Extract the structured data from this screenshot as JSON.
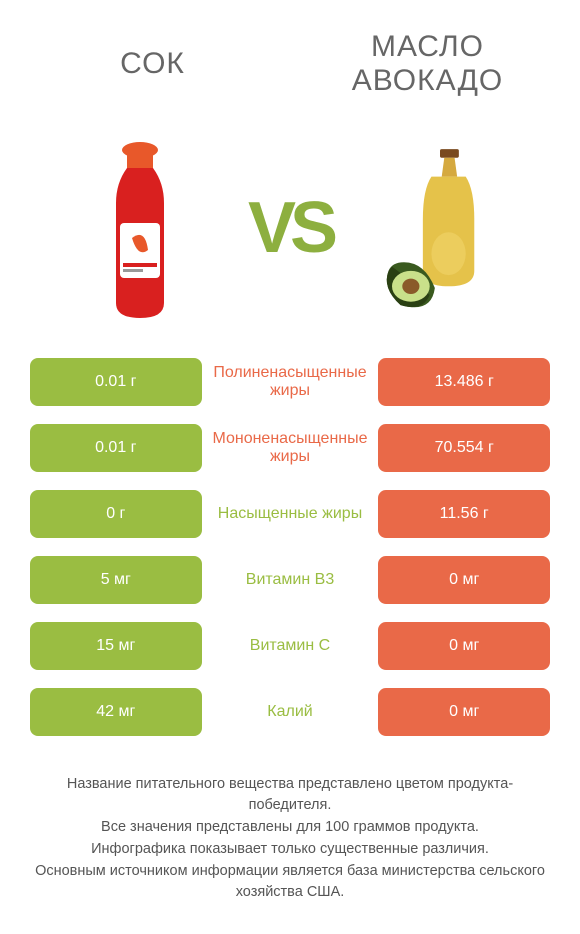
{
  "colors": {
    "left": "#9abd42",
    "right": "#e96948",
    "vs": "#8daf3f",
    "title": "#666666",
    "foot": "#555555",
    "bg": "#ffffff"
  },
  "left_title": "СОК",
  "right_title": "МАСЛО АВОКАДО",
  "vs": "VS",
  "rows": [
    {
      "left": "0.01 г",
      "mid": "Полиненасыщенные жиры",
      "right": "13.486 г",
      "winner": "right"
    },
    {
      "left": "0.01 г",
      "mid": "Мононенасыщенные жиры",
      "right": "70.554 г",
      "winner": "right"
    },
    {
      "left": "0 г",
      "mid": "Насыщенные жиры",
      "right": "11.56 г",
      "winner": "left"
    },
    {
      "left": "5 мг",
      "mid": "Витамин B3",
      "right": "0 мг",
      "winner": "left"
    },
    {
      "left": "15 мг",
      "mid": "Витамин C",
      "right": "0 мг",
      "winner": "left"
    },
    {
      "left": "42 мг",
      "mid": "Калий",
      "right": "0 мг",
      "winner": "left"
    }
  ],
  "footnote_lines": [
    "Название питательного вещества представлено цветом продукта-победителя.",
    "Все значения представлены для 100 граммов продукта.",
    "Инфографика показывает только существенные различия.",
    "Основным источником информации является база министерства сельского хозяйства США."
  ]
}
